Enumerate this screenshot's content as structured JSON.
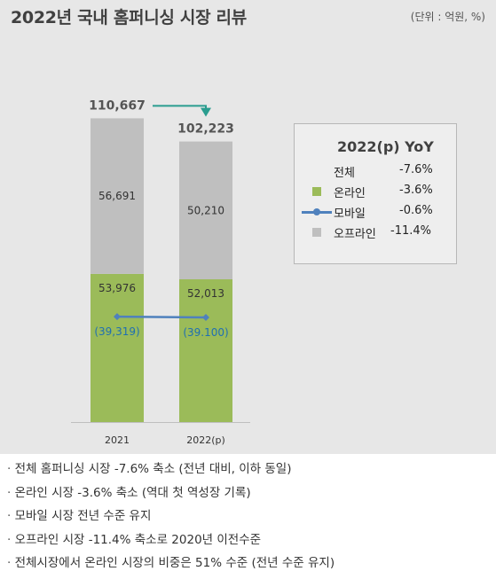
{
  "header": {
    "title": "2022년 국내 홈퍼니싱 시장 리뷰",
    "unit": "(단위 : 억원, %)"
  },
  "chart_data": {
    "type": "bar",
    "stacked": true,
    "categories": [
      "2021",
      "2022(p)"
    ],
    "totals": [
      "110,667",
      "102,223"
    ],
    "series": [
      {
        "name": "온라인",
        "values": [
          53976,
          52013
        ],
        "labels": [
          "53,976",
          "52,013"
        ],
        "color": "#9bbb59"
      },
      {
        "name": "오프라인",
        "values": [
          56691,
          50210
        ],
        "labels": [
          "56,691",
          "50,210"
        ],
        "color": "#bfbfbf"
      }
    ],
    "line_series": {
      "name": "모바일",
      "values": [
        39319,
        39100
      ],
      "labels": [
        "(39,319)",
        "(39.100)"
      ],
      "color": "#4f81bd"
    },
    "ylim": [
      0,
      130000
    ],
    "accent_arrow_color": "#2a9d8f"
  },
  "legend": {
    "title": "2022(p)  YoY",
    "rows": [
      {
        "label": "전체",
        "value": "-7.6%"
      },
      {
        "label": "온라인",
        "value": "-3.6%"
      },
      {
        "label": "모바일",
        "value": "-0.6%"
      },
      {
        "label": "오프라인",
        "value": "-11.4%"
      }
    ]
  },
  "notes": [
    "전체 홈퍼니싱 시장 -7.6% 축소 (전년 대비, 이하 동일)",
    "온라인 시장  -3.6% 축소 (역대 첫 역성장 기록)",
    "모바일 시장 전년 수준 유지",
    "오프라인 시장 -11.4% 축소로 2020년 이전수준",
    "전체시장에서 온라인 시장의 비중은 51% 수준 (전년 수준 유지)"
  ]
}
